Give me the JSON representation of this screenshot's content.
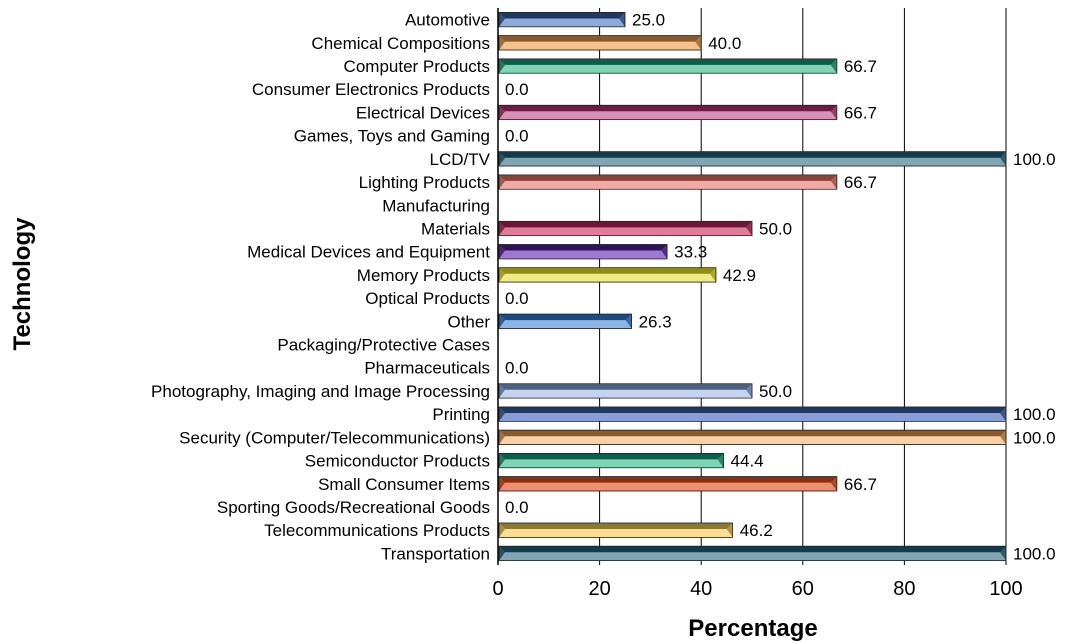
{
  "chart_data": {
    "type": "bar",
    "orientation": "horizontal",
    "xlabel": "Percentage",
    "ylabel": "Technology",
    "xlim": [
      0,
      100
    ],
    "xticks": [
      "0",
      "20",
      "40",
      "60",
      "80",
      "100"
    ],
    "grid": "vertical",
    "categories": [
      "Automotive",
      "Chemical Compositions",
      "Computer Products",
      "Consumer Electronics Products",
      "Electrical Devices",
      "Games, Toys and Gaming",
      "LCD/TV",
      "Lighting Products",
      "Manufacturing",
      "Materials",
      "Medical Devices and Equipment",
      "Memory Products",
      "Optical Products",
      "Other",
      "Packaging/Protective Cases",
      "Pharmaceuticals",
      "Photography, Imaging and Image Processing",
      "Printing",
      "Security (Computer/Telecommunications)",
      "Semiconductor Products",
      "Small Consumer Items",
      "Sporting Goods/Recreational Goods",
      "Telecommunications Products",
      "Transportation"
    ],
    "values": [
      25.0,
      40.0,
      66.7,
      0.0,
      66.7,
      0.0,
      100.0,
      66.7,
      null,
      50.0,
      33.3,
      42.9,
      0.0,
      26.3,
      null,
      0.0,
      50.0,
      100.0,
      100.0,
      44.4,
      66.7,
      0.0,
      46.2,
      100.0
    ],
    "value_labels": [
      "25.0",
      "40.0",
      "66.7",
      "0.0",
      "66.7",
      "0.0",
      "100.0",
      "66.7",
      "",
      "50.0",
      "33.3",
      "42.9",
      "0.0",
      "26.3",
      "",
      "0.0",
      "50.0",
      "100.0",
      "100.0",
      "44.4",
      "66.7",
      "0.0",
      "46.2",
      "100.0"
    ],
    "bar_colors": [
      [
        "#1f3864",
        "#8eaadb"
      ],
      [
        "#8b5a2b",
        "#f4c28c"
      ],
      [
        "#0b5e48",
        "#7fd4b4"
      ],
      [
        "#555555",
        "#dddddd"
      ],
      [
        "#6e1a44",
        "#d592b4"
      ],
      [
        "#555555",
        "#dddddd"
      ],
      [
        "#123c4a",
        "#80a6b6"
      ],
      [
        "#8e4238",
        "#efaca6"
      ],
      [
        "#555555",
        "#dddddd"
      ],
      [
        "#6e1436",
        "#e07c9a"
      ],
      [
        "#33105c",
        "#9e78d2"
      ],
      [
        "#8e8c14",
        "#eeea84"
      ],
      [
        "#555555",
        "#dddddd"
      ],
      [
        "#1c4a84",
        "#8ab6e6"
      ],
      [
        "#555555",
        "#dddddd"
      ],
      [
        "#555555",
        "#dddddd"
      ],
      [
        "#4c6284",
        "#c4d4ee"
      ],
      [
        "#1f3864",
        "#8a9ed6"
      ],
      [
        "#8b5a2b",
        "#f8d0a6"
      ],
      [
        "#0b5e48",
        "#7fd4b4"
      ],
      [
        "#8a2e0c",
        "#ee9070"
      ],
      [
        "#555555",
        "#dddddd"
      ],
      [
        "#8e7a2e",
        "#fadc94"
      ],
      [
        "#123c4a",
        "#80a6b6"
      ]
    ]
  }
}
